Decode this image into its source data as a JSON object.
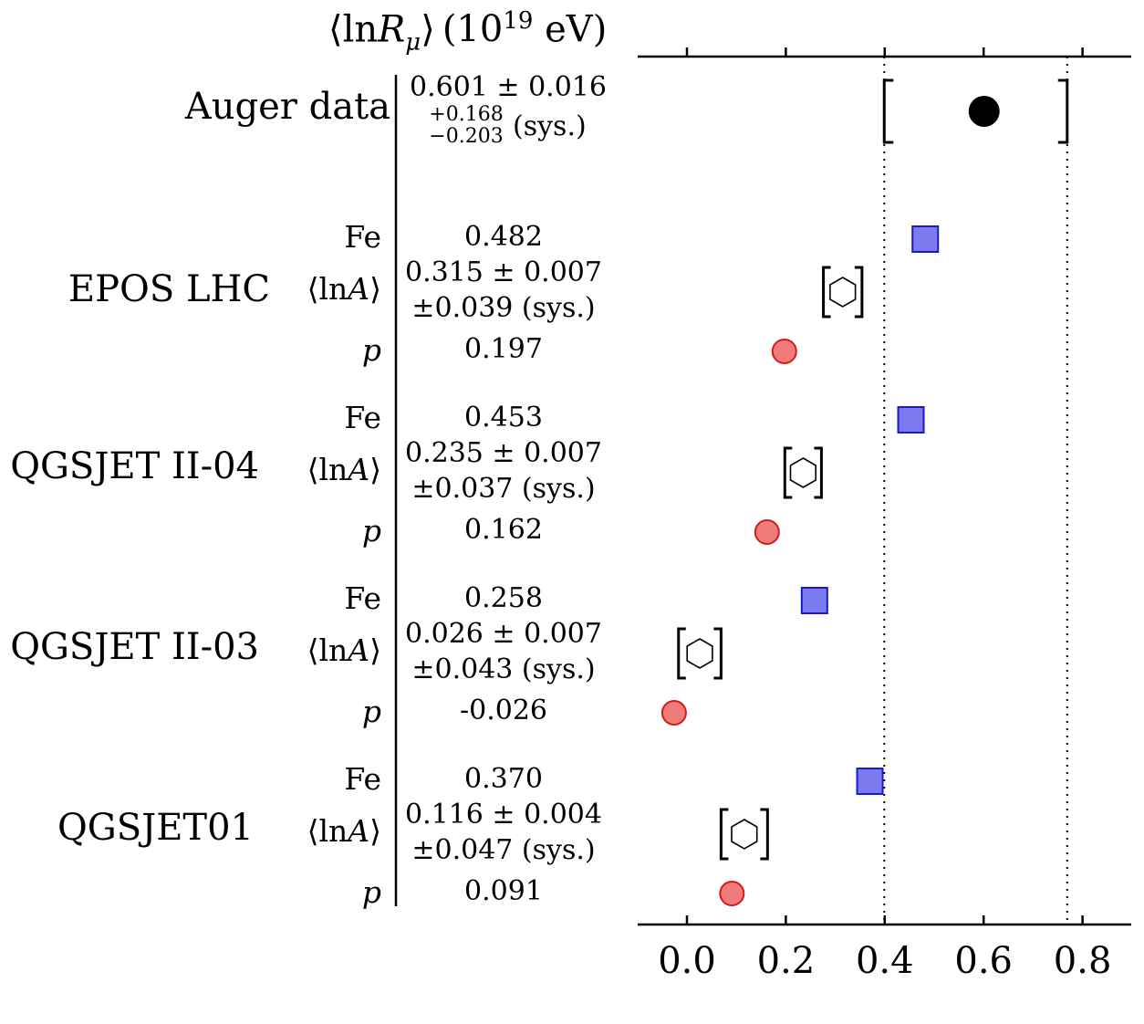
{
  "chart_data": {
    "type": "scatter",
    "title": "⟨lnR_μ⟩ (10^19 eV)",
    "title_parts": {
      "lang": "⟨ln",
      "var": "R",
      "sub": "μ",
      "rang": "⟩",
      "unit_base": "(10",
      "unit_exp": "19",
      "unit_tail": " eV)"
    },
    "xlim": [
      -0.1,
      0.9
    ],
    "xticks": [
      "0.0",
      "0.2",
      "0.4",
      "0.6",
      "0.8"
    ],
    "xtick_values": [
      0.0,
      0.2,
      0.4,
      0.6,
      0.8
    ],
    "reference_lines": [
      0.399,
      0.769
    ],
    "auger": {
      "label": "Auger data",
      "value": 0.601,
      "value_text": "0.601 ± 0.016",
      "sys_plus": "+0.168",
      "sys_minus": "−0.203",
      "sys_label": "(sys.)",
      "bracket": [
        0.399,
        0.769
      ]
    },
    "models": [
      {
        "name": "EPOS LHC",
        "name_first": "E",
        "name_caps": "POS",
        "name_rest": " LHC",
        "fe": 0.482,
        "fe_text": "0.482",
        "lna": 0.315,
        "lna_text": "0.315 ± 0.007",
        "lna_sys": "±0.039 (sys.)",
        "lna_bracket": [
          0.276,
          0.354
        ],
        "p": 0.197,
        "p_text": "0.197"
      },
      {
        "name": "QGSJET II-04",
        "name_first": "QGSJ",
        "name_caps": "ET",
        "name_rest": " II-04",
        "fe": 0.453,
        "fe_text": "0.453",
        "lna": 0.235,
        "lna_text": "0.235 ± 0.007",
        "lna_sys": "±0.037 (sys.)",
        "lna_bracket": [
          0.198,
          0.272
        ],
        "p": 0.162,
        "p_text": "0.162"
      },
      {
        "name": "QGSJET II-03",
        "name_first": "QGSJ",
        "name_caps": "ET",
        "name_rest": " II-03",
        "fe": 0.258,
        "fe_text": "0.258",
        "lna": 0.026,
        "lna_text": "0.026 ± 0.007",
        "lna_sys": "±0.043 (sys.)",
        "lna_bracket": [
          -0.017,
          0.069
        ],
        "p": -0.026,
        "p_text": "-0.026"
      },
      {
        "name": "QGSJET01",
        "name_first": "QGSJ",
        "name_caps": "ET",
        "name_rest": "01",
        "fe": 0.37,
        "fe_text": "0.370",
        "lna": 0.116,
        "lna_text": "0.116 ± 0.004",
        "lna_sys": "±0.047 (sys.)",
        "lna_bracket": [
          0.069,
          0.163
        ],
        "p": 0.091,
        "p_text": "0.091"
      }
    ],
    "row_labels": {
      "fe": "Fe",
      "lna_pre": "⟨ln",
      "lna_var": "A",
      "lna_post": "⟩",
      "p": "p"
    },
    "markers": {
      "fe": "square",
      "lna": "hexagon",
      "p": "circle",
      "auger": "circle"
    },
    "colors": {
      "fe_fill": "#7b7bef",
      "fe_edge": "#1a1acc",
      "p_fill": "#f07b7b",
      "p_edge": "#d41b1b",
      "auger": "#000000",
      "line": "#000000"
    }
  }
}
